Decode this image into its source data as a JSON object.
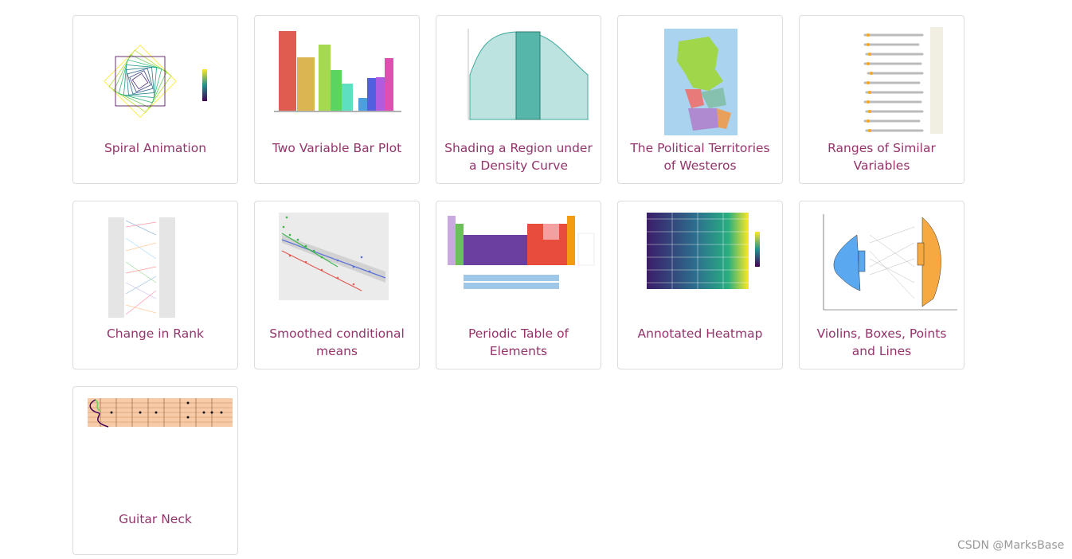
{
  "gallery": {
    "items": [
      {
        "title": "Spiral Animation"
      },
      {
        "title": "Two Variable Bar Plot"
      },
      {
        "title": "Shading a Region under a Density Curve"
      },
      {
        "title": "The Political Territories of Westeros"
      },
      {
        "title": "Ranges of Similar Variables"
      },
      {
        "title": "Change in Rank"
      },
      {
        "title": "Smoothed conditional means"
      },
      {
        "title": "Periodic Table of Elements"
      },
      {
        "title": "Annotated Heatmap"
      },
      {
        "title": "Violins, Boxes, Points and Lines"
      },
      {
        "title": "Guitar Neck"
      }
    ]
  },
  "watermark": "CSDN @MarksBase"
}
